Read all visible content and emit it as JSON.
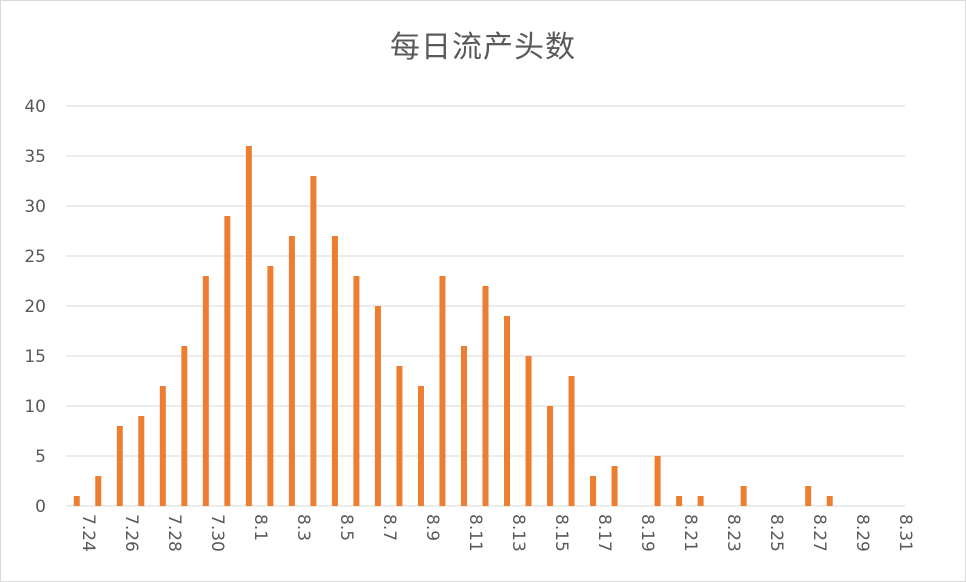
{
  "chart_data": {
    "type": "bar",
    "title": "每日流产头数",
    "xlabel": "",
    "ylabel": "",
    "ylim": [
      0,
      40
    ],
    "yticks": [
      0,
      5,
      10,
      15,
      20,
      25,
      30,
      35,
      40
    ],
    "grid": true,
    "legend": "none",
    "bar_color": "#ed7d31",
    "grid_color": "#d9d9d9",
    "categories": [
      "7.24",
      "7.25",
      "7.26",
      "7.27",
      "7.28",
      "7.29",
      "7.30",
      "7.31",
      "8.1",
      "8.2",
      "8.3",
      "8.4",
      "8.5",
      "8.6",
      "8.7",
      "8.8",
      "8.9",
      "8.10",
      "8.11",
      "8.12",
      "8.13",
      "8.14",
      "8.15",
      "8.16",
      "8.17",
      "8.18",
      "8.19",
      "8.20",
      "8.21",
      "8.22",
      "8.23",
      "8.24",
      "8.25",
      "8.26",
      "8.27",
      "8.28",
      "8.29",
      "8.30",
      "8.31"
    ],
    "tick_labels": [
      "7.24",
      "7.26",
      "7.28",
      "7.30",
      "8.1",
      "8.3",
      "8.5",
      "8.7",
      "8.9",
      "8.11",
      "8.13",
      "8.15",
      "8.17",
      "8.19",
      "8.21",
      "8.23",
      "8.25",
      "8.27",
      "8.29",
      "8.31"
    ],
    "values": [
      1,
      3,
      8,
      9,
      12,
      16,
      23,
      29,
      36,
      24,
      27,
      33,
      27,
      23,
      20,
      14,
      12,
      23,
      16,
      22,
      19,
      15,
      10,
      13,
      3,
      4,
      0,
      5,
      1,
      1,
      0,
      2,
      0,
      0,
      2,
      1,
      0,
      0,
      0
    ]
  }
}
